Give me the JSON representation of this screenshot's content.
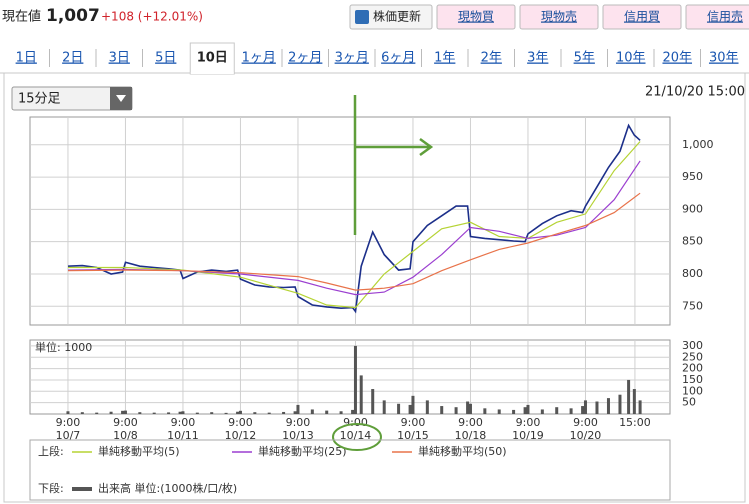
{
  "header": {
    "label": "現在値",
    "price": "1,007",
    "change": "+108 (+12.01%)",
    "buttons": [
      "株価更新",
      "現物買",
      "現物売",
      "信用買",
      "信用売"
    ]
  },
  "tabs": [
    "1日",
    "2日",
    "3日",
    "5日",
    "10日",
    "1ヶ月",
    "2ヶ月",
    "3ヶ月",
    "6ヶ月",
    "1年",
    "2年",
    "3年",
    "5年",
    "10年",
    "20年",
    "30年"
  ],
  "selected_tab": 4,
  "interval": "15分足",
  "timestamp": "21/10/20 15:00",
  "chart_data": [
    {
      "type": "line",
      "xlim": [
        -0.66,
        10.47
      ],
      "ylim": [
        721,
        1043
      ],
      "yticks": [
        750,
        800,
        850,
        900,
        950,
        {
          "value": 1000,
          "label": "1,000"
        }
      ],
      "grid": true,
      "legend_label": "上段:",
      "series": [
        {
          "color": "#1c2f8a",
          "x": [
            0,
            0.25,
            0.5,
            0.75,
            0.95,
            1,
            1.25,
            1.5,
            1.75,
            1.95,
            2,
            2.25,
            2.5,
            2.75,
            2.95,
            3,
            3.25,
            3.5,
            3.75,
            3.95,
            4,
            4.25,
            4.5,
            4.75,
            4.95,
            5,
            5.1,
            5.3,
            5.5,
            5.75,
            5.95,
            6,
            6.25,
            6.5,
            6.75,
            6.95,
            7,
            7.25,
            7.5,
            7.75,
            7.95,
            8,
            8.25,
            8.5,
            8.75,
            8.95,
            9,
            9.2,
            9.4,
            9.6,
            9.75,
            9.85,
            9.95
          ],
          "values": [
            812,
            813,
            810,
            800,
            803,
            818,
            812,
            810,
            808,
            806,
            793,
            803,
            806,
            804,
            806,
            792,
            783,
            780,
            779,
            780,
            765,
            752,
            749,
            747,
            748,
            742,
            812,
            865,
            830,
            806,
            808,
            850,
            875,
            890,
            905,
            905,
            858,
            855,
            853,
            851,
            850,
            862,
            878,
            890,
            898,
            895,
            905,
            935,
            965,
            990,
            1030,
            1015,
            1007
          ]
        },
        {
          "name": "単純移動平均(5)",
          "color": "#b5d334",
          "x": [
            0,
            1,
            2,
            3,
            4,
            4.5,
            5,
            5.5,
            6,
            6.5,
            7,
            7.5,
            8,
            8.5,
            9,
            9.5,
            9.95
          ],
          "values": [
            810,
            810,
            806,
            795,
            770,
            752,
            748,
            800,
            835,
            870,
            880,
            858,
            855,
            880,
            893,
            960,
            1005
          ]
        },
        {
          "name": "単純移動平均(25)",
          "color": "#9b3fd0",
          "x": [
            0,
            1,
            2,
            3,
            4,
            4.5,
            5,
            5.5,
            6,
            6.5,
            7,
            7.5,
            8,
            8.5,
            9,
            9.5,
            9.95
          ],
          "values": [
            806,
            807,
            805,
            800,
            790,
            778,
            768,
            772,
            795,
            830,
            872,
            866,
            855,
            860,
            872,
            915,
            975
          ]
        },
        {
          "name": "単純移動平均(50)",
          "color": "#e8734a",
          "x": [
            0,
            1,
            2,
            3,
            4,
            4.5,
            5,
            5.5,
            6,
            6.5,
            7,
            7.5,
            8,
            8.5,
            9,
            9.5,
            9.95
          ],
          "values": [
            805,
            806,
            805,
            802,
            796,
            786,
            775,
            778,
            785,
            805,
            822,
            838,
            848,
            862,
            875,
            895,
            925
          ]
        }
      ]
    },
    {
      "type": "bar",
      "subtitle": "単位: 1000",
      "xlim": [
        -0.66,
        10.47
      ],
      "ylim": [
        0,
        326
      ],
      "yticks": [
        50,
        100,
        150,
        200,
        250,
        300
      ],
      "grid": true,
      "xticks": [
        {
          "value": 0,
          "label": "9:00"
        },
        {
          "value": 1,
          "label": "9:00"
        },
        {
          "value": 2,
          "label": "9:00"
        },
        {
          "value": 3,
          "label": "9:00"
        },
        {
          "value": 4,
          "label": "9:00"
        },
        {
          "value": 5,
          "label": "9:00"
        },
        {
          "value": 6,
          "label": "9:00"
        },
        {
          "value": 7,
          "label": "9:00"
        },
        {
          "value": 8,
          "label": "9:00"
        },
        {
          "value": 9,
          "label": "9:00"
        },
        {
          "value": 9.86,
          "label": "15:00"
        }
      ],
      "xtick_dates": [
        "10/7",
        "10/8",
        "10/11",
        "10/12",
        "10/13",
        "10/14",
        "10/15",
        "10/18",
        "10/19",
        "10/20",
        null
      ],
      "legend_label": "下段:",
      "series": [
        {
          "name": "出来高 単位:(1000株/口/枚)",
          "color": "#555555",
          "x": [
            0,
            0.25,
            0.5,
            0.75,
            0.95,
            1,
            1.25,
            1.5,
            1.75,
            1.95,
            2,
            2.25,
            2.5,
            2.75,
            2.95,
            3,
            3.25,
            3.5,
            3.75,
            3.95,
            4,
            4.25,
            4.5,
            4.75,
            4.95,
            5,
            5.1,
            5.3,
            5.5,
            5.75,
            5.95,
            6,
            6.25,
            6.5,
            6.75,
            6.95,
            7,
            7.25,
            7.5,
            7.75,
            7.95,
            8,
            8.25,
            8.5,
            8.75,
            8.95,
            9,
            9.2,
            9.4,
            9.6,
            9.75,
            9.85,
            9.95
          ],
          "values": [
            12,
            8,
            6,
            10,
            14,
            15,
            8,
            6,
            7,
            10,
            12,
            6,
            8,
            5,
            10,
            14,
            8,
            6,
            9,
            12,
            40,
            20,
            15,
            12,
            18,
            300,
            170,
            110,
            60,
            45,
            40,
            80,
            60,
            35,
            30,
            55,
            45,
            25,
            20,
            18,
            30,
            40,
            20,
            30,
            25,
            35,
            60,
            55,
            70,
            85,
            150,
            110,
            60
          ]
        }
      ]
    }
  ]
}
